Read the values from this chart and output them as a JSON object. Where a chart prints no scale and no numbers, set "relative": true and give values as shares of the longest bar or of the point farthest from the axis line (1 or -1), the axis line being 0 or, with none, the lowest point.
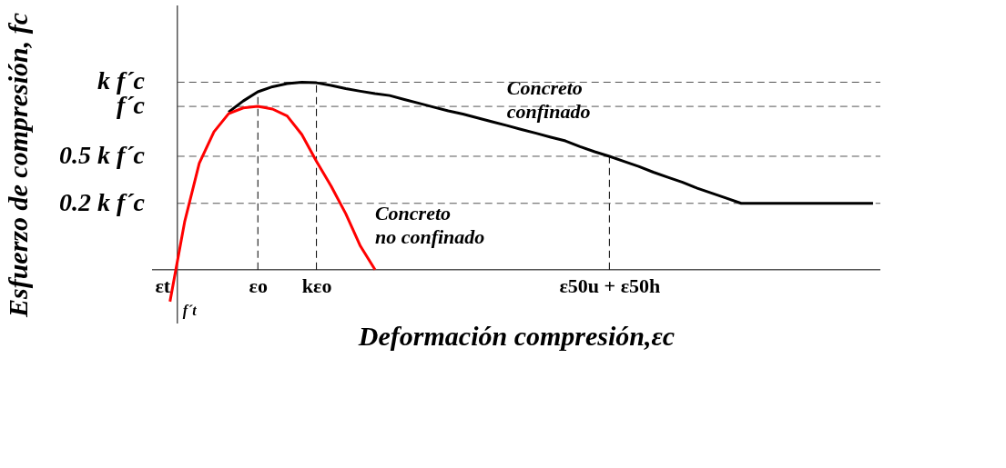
{
  "chart_data": {
    "type": "line",
    "relative": true,
    "xlabel": "Deformación compresión,εc",
    "ylabel": "Esfuerzo de compresión, fc",
    "categories": [
      "εt",
      null,
      null,
      null,
      null,
      null,
      "εo",
      null,
      null,
      null,
      "kεo",
      null,
      null,
      null,
      null,
      null,
      null,
      null,
      null,
      null,
      null,
      null,
      null,
      null,
      null,
      null,
      null,
      null,
      null,
      null,
      "ε50u + ε50h",
      null,
      null,
      null,
      null,
      null,
      null,
      null,
      null,
      null,
      null,
      null,
      null,
      null,
      null,
      null,
      null,
      null,
      null
    ],
    "series": [
      {
        "name": "Concreto confinado",
        "color": "#000000",
        "values": [
          null,
          null,
          null,
          null,
          0.84,
          0.9,
          0.949,
          0.976,
          0.993,
          1.0,
          0.997,
          0.983,
          0.966,
          0.952,
          0.939,
          0.929,
          0.908,
          0.888,
          0.867,
          0.847,
          0.83,
          0.81,
          0.789,
          0.769,
          0.748,
          0.728,
          0.707,
          0.687,
          0.656,
          0.629,
          0.605,
          0.578,
          0.551,
          0.52,
          0.493,
          0.466,
          0.435,
          0.408,
          0.381,
          0.354,
          0.354,
          0.354,
          0.354,
          0.354,
          0.354,
          0.354,
          0.354,
          0.354,
          0.354
        ]
      },
      {
        "name": "Concreto no confinado",
        "color": "#ff0000",
        "values": [
          -0.17,
          0.255,
          0.568,
          0.735,
          0.832,
          0.863,
          0.871,
          0.857,
          0.82,
          0.721,
          0.578,
          0.446,
          0.299,
          0.126,
          0.0,
          null,
          null,
          null,
          null,
          null,
          null,
          null,
          null,
          null,
          null,
          null,
          null,
          null,
          null,
          null,
          null,
          null,
          null,
          null,
          null,
          null,
          null,
          null,
          null,
          null,
          null,
          null,
          null,
          null,
          null,
          null,
          null,
          null,
          null
        ]
      }
    ],
    "ref_lines": [
      {
        "axis": "y",
        "value": 1.0,
        "label": "k f´c",
        "line_style": "dashed"
      },
      {
        "axis": "y",
        "value": 0.871,
        "label": "f´c",
        "line_style": "dashed"
      },
      {
        "axis": "y",
        "value": 0.605,
        "label": "0.5 k f´c",
        "line_style": "dashed"
      },
      {
        "axis": "y",
        "value": 0.354,
        "label": "0.2 k f´c",
        "line_style": "dashed"
      },
      {
        "axis": "x",
        "value": "εo",
        "line_style": "dashed"
      },
      {
        "axis": "x",
        "value": "kεo",
        "line_style": "dashed"
      },
      {
        "axis": "x",
        "value": "ε50u + ε50h",
        "line_style": "dashed"
      }
    ],
    "annotations": [
      {
        "text": "f´t",
        "x": "εt",
        "y": -0.17
      }
    ],
    "marker": "none",
    "line_style": "solid",
    "grid": false
  }
}
